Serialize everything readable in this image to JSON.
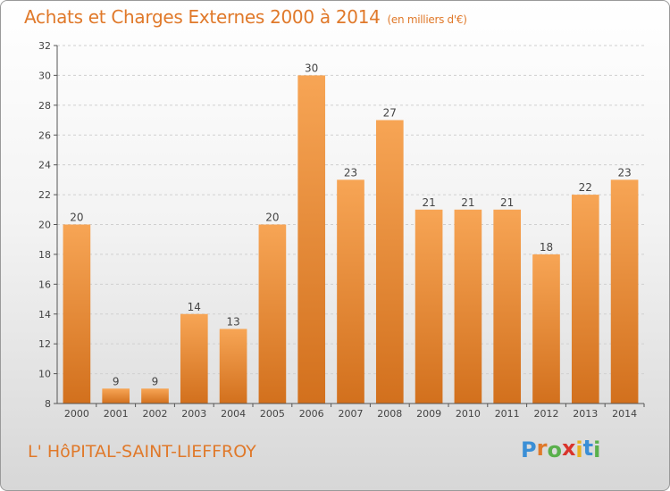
{
  "chart_data": {
    "type": "bar",
    "title": "Achats et Charges Externes 2000 à 2014",
    "unit": "(en milliers d'€)",
    "categories": [
      "2000",
      "2001",
      "2002",
      "2003",
      "2004",
      "2005",
      "2006",
      "2007",
      "2008",
      "2009",
      "2010",
      "2011",
      "2012",
      "2013",
      "2014"
    ],
    "values": [
      20,
      9,
      9,
      14,
      13,
      20,
      30,
      23,
      27,
      21,
      21,
      21,
      18,
      22,
      23
    ],
    "ylim": [
      8,
      32
    ],
    "yticks": [
      8,
      10,
      12,
      14,
      16,
      18,
      20,
      22,
      24,
      26,
      28,
      30,
      32
    ],
    "grid": true,
    "bar_color_top": "#f7a555",
    "bar_color_bottom": "#d2701d"
  },
  "footer": {
    "place": "L' HôPITAL-SAINT-LIEFFROY",
    "logo": "Proxiti"
  }
}
